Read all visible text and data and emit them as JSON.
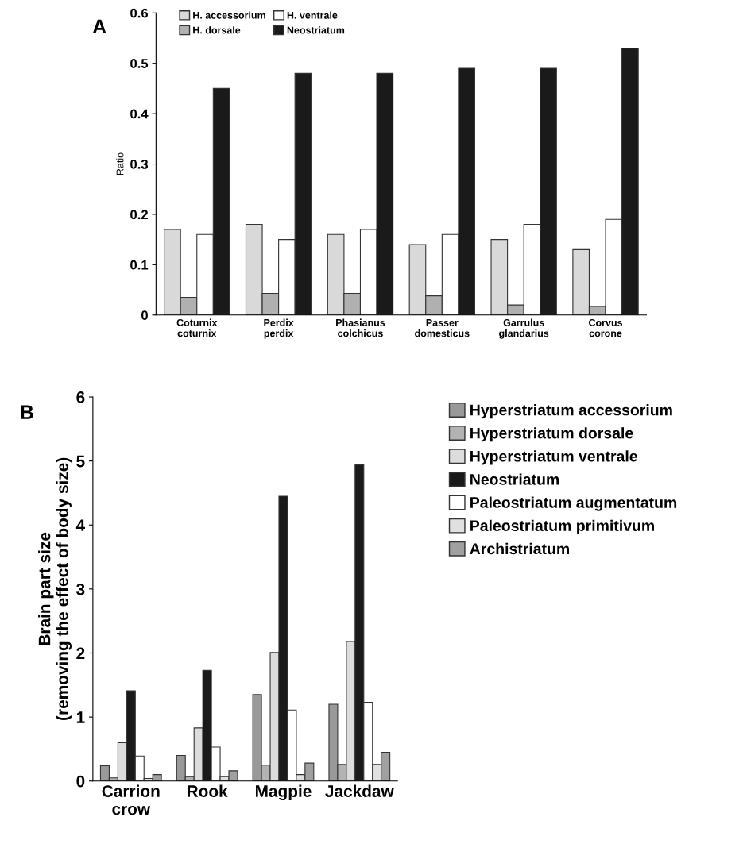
{
  "chart_data": [
    {
      "type": "bar",
      "annotations": [
        "A"
      ],
      "ylabel": "Ratio",
      "categories": [
        "Coturnix\ncoturnix",
        "Perdix\nperdix",
        "Phasianus\ncolchicus",
        "Passer\ndomesticus",
        "Garrulus\nglandarius",
        "Corvus\ncorone"
      ],
      "series": [
        {
          "name": "H. accessorium",
          "color": "#d9d9d9",
          "values": [
            0.17,
            0.18,
            0.16,
            0.14,
            0.15,
            0.13
          ]
        },
        {
          "name": "H. dorsale",
          "color": "#b0b0b0",
          "values": [
            0.035,
            0.043,
            0.043,
            0.038,
            0.02,
            0.017
          ]
        },
        {
          "name": "H. ventrale",
          "color": "#ffffff",
          "values": [
            0.16,
            0.15,
            0.17,
            0.16,
            0.18,
            0.19
          ]
        },
        {
          "name": "Neostriatum",
          "color": "#1a1a1a",
          "values": [
            0.45,
            0.48,
            0.48,
            0.49,
            0.49,
            0.53
          ]
        }
      ],
      "ylim": [
        0,
        0.6
      ],
      "yticks": [
        {
          "value": 0,
          "label": "0"
        },
        0.1,
        0.2,
        0.3,
        0.4,
        0.5,
        0.6
      ],
      "legend": "top left",
      "grid": false
    },
    {
      "type": "bar",
      "annotations": [
        "B"
      ],
      "ylabel": "Brain part size\n(removing the effect of body size)",
      "categories": [
        "Carrion\ncrow",
        "Rook",
        "Magpie",
        "Jackdaw"
      ],
      "series": [
        {
          "name": "Hyperstriatum accessorium",
          "color": "#999999",
          "values": [
            0.24,
            0.4,
            1.35,
            1.2
          ]
        },
        {
          "name": "Hyperstriatum dorsale",
          "color": "#b3b3b3",
          "values": [
            0.05,
            0.07,
            0.25,
            0.26
          ]
        },
        {
          "name": "Hyperstriatum ventrale",
          "color": "#dcdcdc",
          "values": [
            0.6,
            0.83,
            2.01,
            2.18
          ]
        },
        {
          "name": "Neostriatum",
          "color": "#1a1a1a",
          "values": [
            1.41,
            1.73,
            4.45,
            4.94
          ]
        },
        {
          "name": "Paleostriatum augmentatum",
          "color": "#ffffff",
          "values": [
            0.39,
            0.53,
            1.11,
            1.23
          ]
        },
        {
          "name": "Paleostriatum primitivum",
          "color": "#e0e0e0",
          "values": [
            0.04,
            0.07,
            0.1,
            0.26
          ]
        },
        {
          "name": "Archistriatum",
          "color": "#a0a0a0",
          "values": [
            0.1,
            0.16,
            0.28,
            0.45
          ]
        }
      ],
      "ylim": [
        0,
        6
      ],
      "yticks": [
        0,
        1,
        2,
        3,
        4,
        5,
        6
      ],
      "legend": "right",
      "grid": false
    }
  ]
}
